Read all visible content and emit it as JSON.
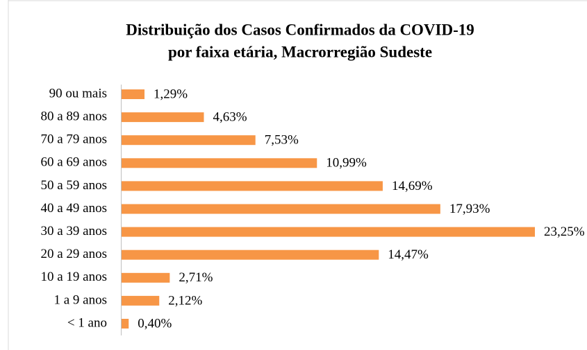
{
  "chart_data": {
    "type": "bar",
    "orientation": "horizontal",
    "title": [
      "Distribuição dos Casos Confirmados da COVID-19",
      "por faixa etária, Macrorregião Sudeste"
    ],
    "categories": [
      "90 ou mais",
      "80 a 89 anos",
      "70 a 79 anos",
      "60 a 69 anos",
      "50 a 59 anos",
      "40 a 49 anos",
      "30 a 39 anos",
      "20 a 29 anos",
      "10 a 19 anos",
      "1 a 9 anos",
      "< 1 ano"
    ],
    "values": [
      1.29,
      4.63,
      7.53,
      10.99,
      14.69,
      17.93,
      23.25,
      14.47,
      2.71,
      2.12,
      0.4
    ],
    "value_labels": [
      "1,29%",
      "4,63%",
      "7,53%",
      "10,99%",
      "14,69%",
      "17,93%",
      "23,25%",
      "14,47%",
      "2,71%",
      "2,12%",
      "0,40%"
    ],
    "color": "#f79646"
  }
}
